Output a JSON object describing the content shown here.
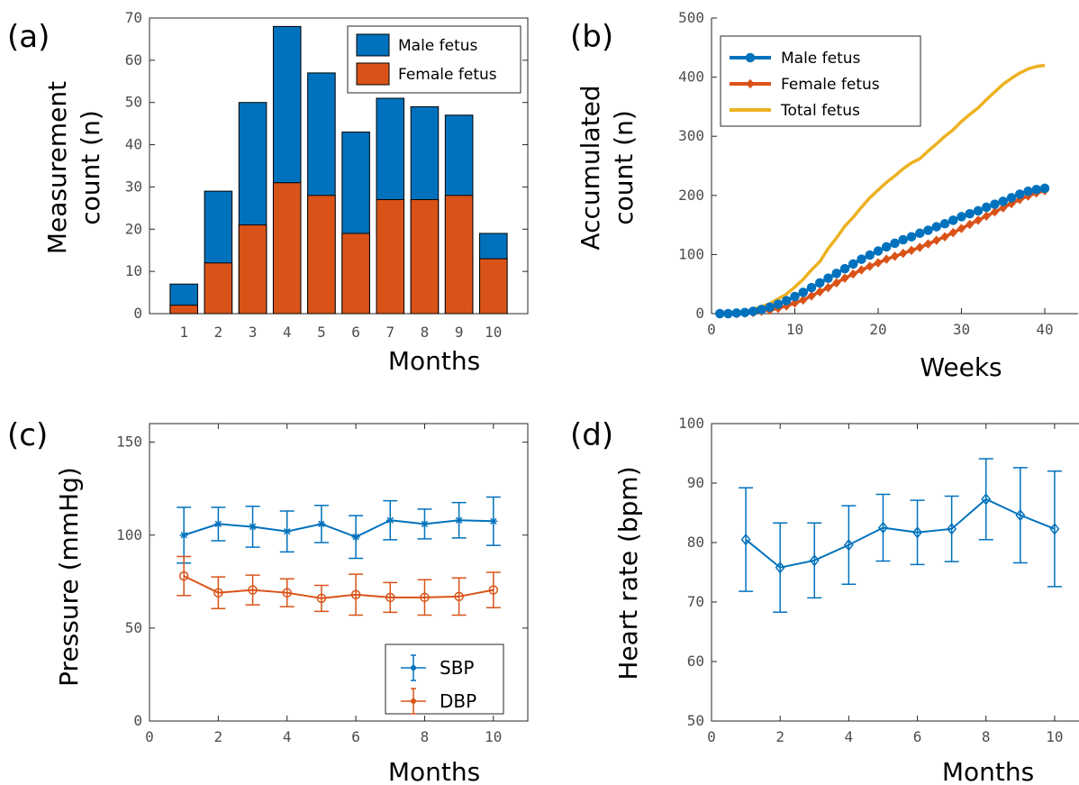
{
  "chart_data": [
    {
      "type": "bar",
      "panel_label": "(a)",
      "stacked": true,
      "categories": [
        "1",
        "2",
        "3",
        "4",
        "5",
        "6",
        "7",
        "8",
        "9",
        "10"
      ],
      "series": [
        {
          "name": "Male fetus",
          "totals": [
            7,
            29,
            50,
            68,
            57,
            43,
            51,
            49,
            47,
            19
          ],
          "color": "#0072BD"
        },
        {
          "name": "Female fetus",
          "values": [
            2,
            12,
            21,
            31,
            28,
            19,
            27,
            27,
            28,
            13
          ],
          "color": "#D95319"
        }
      ],
      "xlabel": "Months",
      "ylabel": [
        "Measurement",
        "count (n)"
      ],
      "ylim": [
        0,
        70
      ],
      "yticks": [
        "0",
        "10",
        "20",
        "30",
        "40",
        "50",
        "60",
        "70"
      ],
      "legend": "top-right",
      "grid": false
    },
    {
      "type": "line",
      "panel_label": "(b)",
      "series": [
        {
          "name": "Male fetus",
          "color": "#0072BD",
          "marker": "circle",
          "x": [
            1,
            2,
            3,
            4,
            5,
            6,
            7,
            8,
            9,
            10,
            11,
            12,
            13,
            14,
            15,
            16,
            17,
            18,
            19,
            20,
            21,
            22,
            23,
            24,
            25,
            26,
            27,
            28,
            29,
            30,
            31,
            32,
            33,
            34,
            35,
            36,
            37,
            38,
            39,
            40
          ],
          "y": [
            0,
            0,
            1,
            2,
            4,
            7,
            11,
            16,
            22,
            29,
            36,
            44,
            52,
            60,
            68,
            76,
            84,
            92,
            99,
            106,
            113,
            119,
            125,
            130,
            136,
            141,
            147,
            152,
            158,
            164,
            169,
            174,
            180,
            185,
            190,
            196,
            202,
            207,
            210,
            212
          ]
        },
        {
          "name": "Female fetus",
          "color": "#D95319",
          "marker": "diamond",
          "x": [
            1,
            2,
            3,
            4,
            5,
            6,
            7,
            8,
            9,
            10,
            11,
            12,
            13,
            14,
            15,
            16,
            17,
            18,
            19,
            20,
            21,
            22,
            23,
            24,
            25,
            26,
            27,
            28,
            29,
            30,
            31,
            32,
            33,
            34,
            35,
            36,
            37,
            38,
            39,
            40
          ],
          "y": [
            0,
            0,
            0,
            1,
            2,
            4,
            6,
            9,
            13,
            18,
            23,
            30,
            37,
            44,
            52,
            60,
            67,
            74,
            80,
            86,
            92,
            97,
            102,
            107,
            112,
            118,
            124,
            130,
            137,
            144,
            151,
            158,
            165,
            172,
            179,
            186,
            193,
            199,
            204,
            208
          ]
        },
        {
          "name": "Total fetus",
          "color": "#EDB120",
          "marker": "none",
          "x": [
            1,
            2,
            3,
            4,
            5,
            6,
            7,
            8,
            9,
            10,
            11,
            12,
            13,
            14,
            15,
            16,
            17,
            18,
            19,
            20,
            21,
            22,
            23,
            24,
            25,
            26,
            27,
            28,
            29,
            30,
            31,
            32,
            33,
            34,
            35,
            36,
            37,
            38,
            39,
            40
          ],
          "y": [
            0,
            0,
            1,
            3,
            7,
            12,
            17,
            25,
            33,
            45,
            58,
            74,
            88,
            110,
            128,
            148,
            163,
            180,
            196,
            209,
            222,
            233,
            245,
            255,
            262,
            275,
            287,
            300,
            311,
            325,
            337,
            348,
            362,
            375,
            388,
            398,
            407,
            414,
            418,
            420
          ]
        }
      ],
      "xlabel": "Weeks",
      "ylabel": [
        "Accumulated",
        "count (n)"
      ],
      "xlim": [
        0,
        44
      ],
      "ylim": [
        0,
        500
      ],
      "xticks": [
        "10",
        "20",
        "30",
        "40"
      ],
      "xtick_values": [
        10,
        20,
        30,
        40
      ],
      "x_zero_label": "0",
      "yticks": [
        "0",
        "100",
        "200",
        "300",
        "400",
        "500"
      ],
      "legend": "top-left",
      "grid": false
    },
    {
      "type": "line",
      "panel_label": "(c)",
      "errorbars": true,
      "series": [
        {
          "name": "SBP",
          "color": "#0072BD",
          "marker": "star",
          "x": [
            1,
            2,
            3,
            4,
            5,
            6,
            7,
            8,
            9,
            10
          ],
          "y": [
            100,
            106,
            104.5,
            102,
            106,
            99,
            108,
            106,
            108,
            107.5
          ],
          "err": [
            15,
            9,
            11,
            11,
            10,
            11.5,
            10.5,
            8,
            9.5,
            13
          ]
        },
        {
          "name": "DBP",
          "color": "#D95319",
          "marker": "circle",
          "x": [
            1,
            2,
            3,
            4,
            5,
            6,
            7,
            8,
            9,
            10
          ],
          "y": [
            78,
            69,
            70.5,
            69,
            66,
            68,
            66.5,
            66.5,
            67,
            70.5
          ],
          "err": [
            10.5,
            8.5,
            8,
            7.5,
            7,
            11,
            8,
            9.5,
            10,
            9.5
          ]
        }
      ],
      "xlabel": "Months",
      "ylabel": "Pressure (mmHg)",
      "xlim": [
        0,
        11
      ],
      "ylim": [
        0,
        160
      ],
      "xticks": [
        "0",
        "2",
        "4",
        "6",
        "8",
        "10"
      ],
      "xtick_values": [
        0,
        2,
        4,
        6,
        8,
        10
      ],
      "yticks": [
        "0",
        "50",
        "100",
        "150"
      ],
      "ytick_values": [
        0,
        50,
        100,
        150
      ],
      "legend": "bottom-right",
      "grid": false
    },
    {
      "type": "line",
      "panel_label": "(d)",
      "errorbars": true,
      "series": [
        {
          "name": "",
          "color": "#0072BD",
          "marker": "diamond",
          "x": [
            1,
            2,
            3,
            4,
            5,
            6,
            7,
            8,
            9,
            10
          ],
          "y": [
            80.5,
            75.8,
            77,
            79.6,
            82.5,
            81.7,
            82.3,
            87.3,
            84.6,
            82.3
          ],
          "err": [
            8.7,
            7.5,
            6.3,
            6.6,
            5.6,
            5.4,
            5.5,
            6.8,
            8,
            9.7
          ]
        }
      ],
      "xlabel": "Months",
      "ylabel": "Heart rate (bpm)",
      "xlim": [
        0,
        11
      ],
      "ylim": [
        50,
        100
      ],
      "xticks": [
        "0",
        "2",
        "4",
        "6",
        "8",
        "10"
      ],
      "xtick_values": [
        0,
        2,
        4,
        6,
        8,
        10
      ],
      "yticks": [
        "50",
        "60",
        "70",
        "80",
        "90",
        "100"
      ],
      "ytick_values": [
        50,
        60,
        70,
        80,
        90,
        100
      ],
      "grid": false
    }
  ]
}
